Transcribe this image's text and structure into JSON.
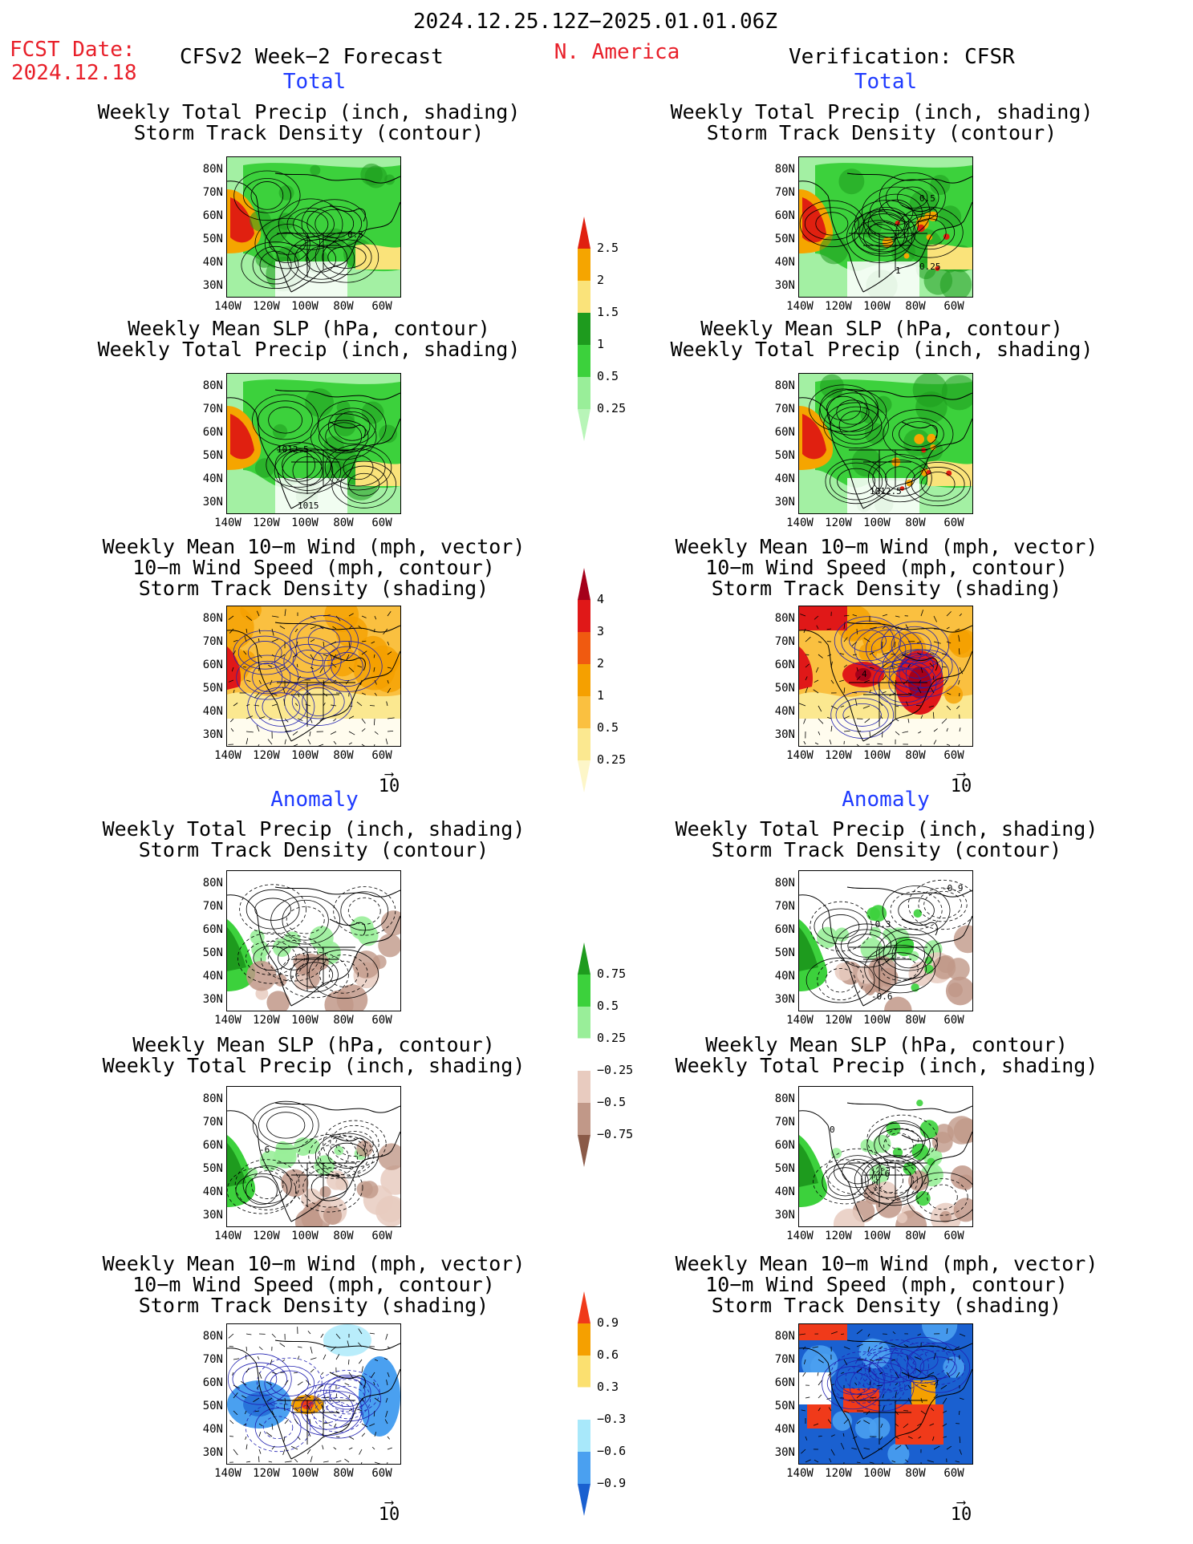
{
  "header": {
    "period": "2024.12.25.12Z−2025.01.01.06Z",
    "fcst_label": "FCST Date:",
    "fcst_date": "2024.12.18",
    "left_title": "CFSv2 Week−2 Forecast",
    "region": "N. America",
    "right_title": "Verification: CFSR",
    "total_label": "Total",
    "anomaly_label": "Anomaly"
  },
  "panel_titles": {
    "precip_storm": "Weekly Total Precip (inch, shading)\nStorm Track Density (contour)",
    "slp_precip": "Weekly Mean SLP (hPa, contour)\nWeekly Total Precip (inch, shading)",
    "wind_storm": "Weekly Mean 10−m Wind (mph, vector)\n10−m Wind Speed (mph, contour)\nStorm Track Density (shading)"
  },
  "axes": {
    "lat_labels": [
      "80N",
      "70N",
      "60N",
      "50N",
      "40N",
      "30N"
    ],
    "lon_labels": [
      "140W",
      "120W",
      "100W",
      "80W",
      "60W"
    ]
  },
  "vector_ref": "10",
  "contour_labels": {
    "fc_total_1": [
      "0.5"
    ],
    "vf_total_1": [
      "0.5",
      "1",
      "0.25"
    ],
    "fc_total_2": [
      "1012.5",
      "1015"
    ],
    "vf_total_2": [
      "1012.5"
    ],
    "vf_total_3": [
      "4"
    ],
    "vf_anom_1": [
      "-0.9",
      "-0.3",
      "-0.6"
    ],
    "fc_anom_2": [
      "-6"
    ],
    "vf_anom_2": [
      "0",
      "-6"
    ]
  },
  "colorbars": {
    "total_precip": {
      "labels": [
        "2.5",
        "2",
        "1.5",
        "1",
        "0.5",
        "0.25"
      ],
      "colors": [
        "#e02010",
        "#f5a500",
        "#fae37a",
        "#1e9b1e",
        "#3cd13c",
        "#99ee99",
        "#b8f5b8"
      ]
    },
    "total_storm": {
      "labels": [
        "4",
        "3",
        "2",
        "1",
        "0.5",
        "0.25"
      ],
      "colors": [
        "#a5001a",
        "#e01818",
        "#f05a10",
        "#f5a000",
        "#fac040",
        "#fbe890",
        "#fdf6c8"
      ]
    },
    "anom_precip": {
      "labels": [
        "0.75",
        "0.5",
        "0.25",
        "−0.25",
        "−0.5",
        "−0.75"
      ],
      "colors": [
        "#1e9b1e",
        "#3cd13c",
        "#99ee99",
        "#ffffff",
        "#e8cbbf",
        "#c19888",
        "#8a5a48"
      ]
    },
    "anom_storm": {
      "labels": [
        "0.9",
        "0.6",
        "0.3",
        "−0.3",
        "−0.6",
        "−0.9"
      ],
      "colors": [
        "#f03a1a",
        "#f5a000",
        "#fbe070",
        "#ffffff",
        "#a8e8fa",
        "#4aa0f0",
        "#1a60d0"
      ]
    }
  }
}
